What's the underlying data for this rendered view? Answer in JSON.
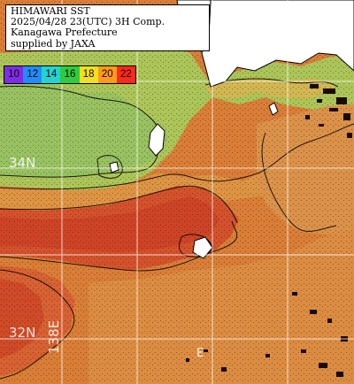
{
  "title": {
    "lines": [
      "HIMAWARI SST",
      "2025/04/28 23(UTC) 3H Comp.",
      "Kanagawa Prefecture",
      "supplied by JAXA"
    ]
  },
  "legend": {
    "values": [
      "10",
      "12",
      "14",
      "16",
      "18",
      "20",
      "22"
    ],
    "colors": [
      "#7a2ee6",
      "#1f8cff",
      "#22d3d3",
      "#2ecc40",
      "#f0e020",
      "#ff9a1a",
      "#ff2a1a"
    ]
  },
  "map": {
    "land_color": "#ffffff",
    "gridline_color": "#ffffff",
    "contour_color": "#000000"
  },
  "coordinates": {
    "lat_34": "34N",
    "lat_32": "32N",
    "lon_138": "138E",
    "lon_140": "E"
  }
}
